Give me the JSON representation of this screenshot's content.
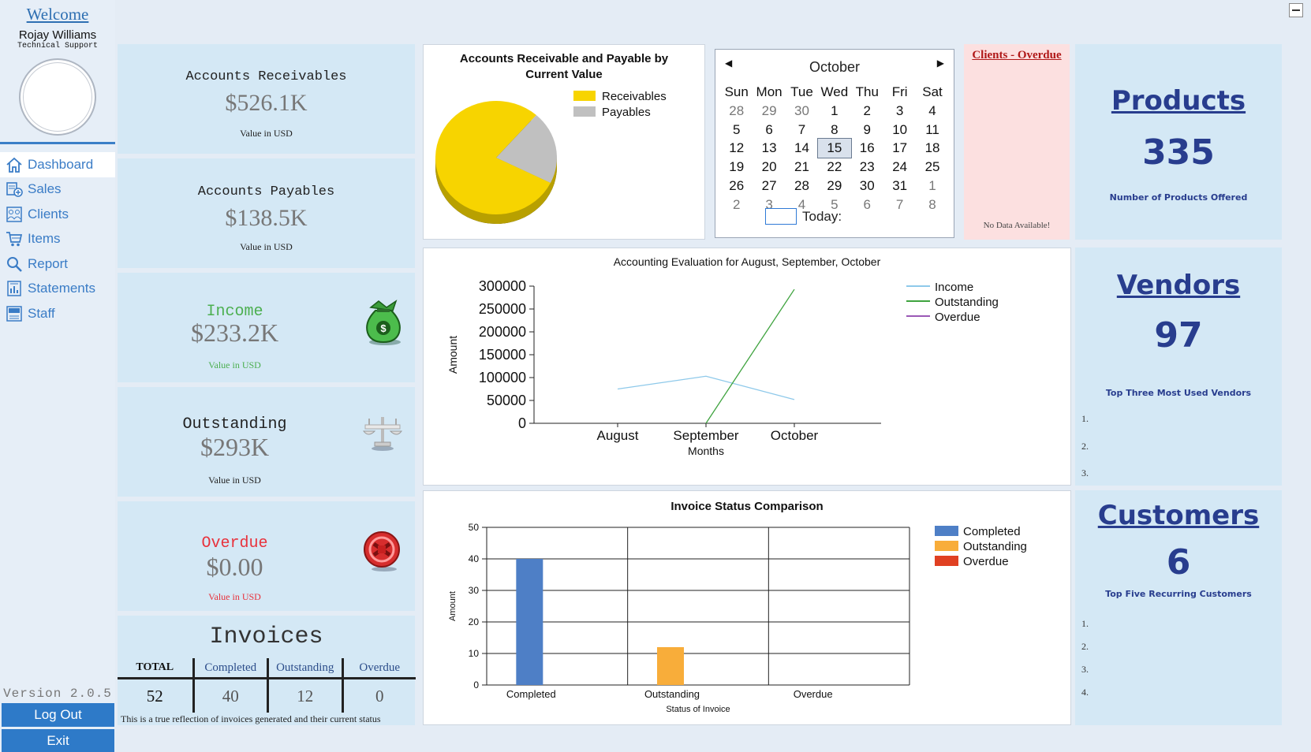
{
  "sidebar": {
    "welcome": "Welcome",
    "user_name": "Rojay Williams",
    "user_role": "Technical Support",
    "nav": [
      {
        "label": "Dashboard",
        "icon": "home-icon"
      },
      {
        "label": "Sales",
        "icon": "sales-icon"
      },
      {
        "label": "Clients",
        "icon": "clients-icon"
      },
      {
        "label": "Items",
        "icon": "cart-icon"
      },
      {
        "label": "Report",
        "icon": "search-icon"
      },
      {
        "label": "Statements",
        "icon": "statements-icon"
      },
      {
        "label": "Staff",
        "icon": "staff-icon"
      }
    ],
    "version": "Version 2.0.5",
    "logout": "Log Out",
    "exit": "Exit"
  },
  "kpis": {
    "receivables": {
      "title": "Accounts Receivables",
      "value": "$526.1K",
      "sub": "Value in USD"
    },
    "payables": {
      "title": "Accounts Payables",
      "value": "$138.5K",
      "sub": "Value in USD"
    },
    "income": {
      "title": "Income",
      "value": "$233.2K",
      "sub": "Value in USD",
      "color": "#4caf50",
      "icon": "money-bag-icon"
    },
    "outstanding": {
      "title": "Outstanding",
      "value": "$293K",
      "sub": "Value in USD",
      "icon": "scale-icon"
    },
    "overdue": {
      "title": "Overdue",
      "value": "$0.00",
      "sub": "Value in USD",
      "color": "#e8323c",
      "icon": "overdue-icon"
    }
  },
  "invoices": {
    "title": "Invoices",
    "headers": [
      "TOTAL",
      "Completed",
      "Outstanding",
      "Overdue"
    ],
    "values": [
      "52",
      "40",
      "12",
      "0"
    ],
    "note": "This is a true reflection of invoices generated and their current status"
  },
  "calendar": {
    "month": "October",
    "weekdays": [
      "Sun",
      "Mon",
      "Tue",
      "Wed",
      "Thu",
      "Fri",
      "Sat"
    ],
    "days": [
      "28",
      "29",
      "30",
      "1",
      "2",
      "3",
      "4",
      "5",
      "6",
      "7",
      "8",
      "9",
      "10",
      "11",
      "12",
      "13",
      "14",
      "15",
      "16",
      "17",
      "18",
      "19",
      "20",
      "21",
      "22",
      "23",
      "24",
      "25",
      "26",
      "27",
      "28",
      "29",
      "30",
      "31",
      "1",
      "2",
      "3",
      "4",
      "5",
      "6",
      "7",
      "8"
    ],
    "selected": "15",
    "today_label": "Today:"
  },
  "overdue_clients": {
    "title": "Clients - Overdue",
    "empty": "No Data Available!"
  },
  "stats": {
    "products": {
      "title": "Products",
      "value": "335",
      "sub": "Number of Products Offered"
    },
    "vendors": {
      "title": "Vendors",
      "value": "97",
      "sub": "Top Three Most Used Vendors",
      "ranks": [
        "1.",
        "2.",
        "3."
      ]
    },
    "customers": {
      "title": "Customers",
      "value": "6",
      "sub": "Top Five Recurring Customers",
      "ranks": [
        "1.",
        "2.",
        "3.",
        "4."
      ]
    }
  },
  "chart_data": [
    {
      "type": "pie",
      "title": "Accounts Receivable and Payable by Current Value",
      "categories": [
        "Receivables",
        "Payables"
      ],
      "values": [
        526.1,
        138.5
      ],
      "colors": [
        "#f7d400",
        "#c0c0c0"
      ],
      "legend": "top-right"
    },
    {
      "type": "line",
      "title": "Accounting Evaluation for August, September, October",
      "x": [
        "August",
        "September",
        "October"
      ],
      "xlabel": "Months",
      "ylabel": "Amount",
      "ylim": [
        0,
        300000
      ],
      "yticks": [
        "300000",
        "250000",
        "200000",
        "150000",
        "100000",
        "50000",
        "0"
      ],
      "series": [
        {
          "name": "Income",
          "values": [
            75000,
            103000,
            52000
          ],
          "color": "#8ec9ea"
        },
        {
          "name": "Outstanding",
          "values": [
            null,
            0,
            293000
          ],
          "color": "#3fa33f"
        },
        {
          "name": "Overdue",
          "values": [
            null,
            null,
            null
          ],
          "color": "#9b59b6"
        }
      ],
      "legend": "top-right"
    },
    {
      "type": "bar",
      "title": "Invoice Status Comparison",
      "categories": [
        "Completed",
        "Outstanding",
        "Overdue"
      ],
      "xlabel": "Status of Invoice",
      "ylabel": "Amount",
      "ylim": [
        0,
        50
      ],
      "yticks": [
        "50",
        "40",
        "30",
        "20",
        "10",
        "0"
      ],
      "series": [
        {
          "name": "Completed",
          "values": [
            40,
            0,
            0
          ],
          "color": "#4e7fc6"
        },
        {
          "name": "Outstanding",
          "values": [
            0,
            12,
            0
          ],
          "color": "#f8ad3a"
        },
        {
          "name": "Overdue",
          "values": [
            0,
            0,
            0
          ],
          "color": "#e04022"
        }
      ],
      "grid": true,
      "legend": "top-right"
    }
  ]
}
